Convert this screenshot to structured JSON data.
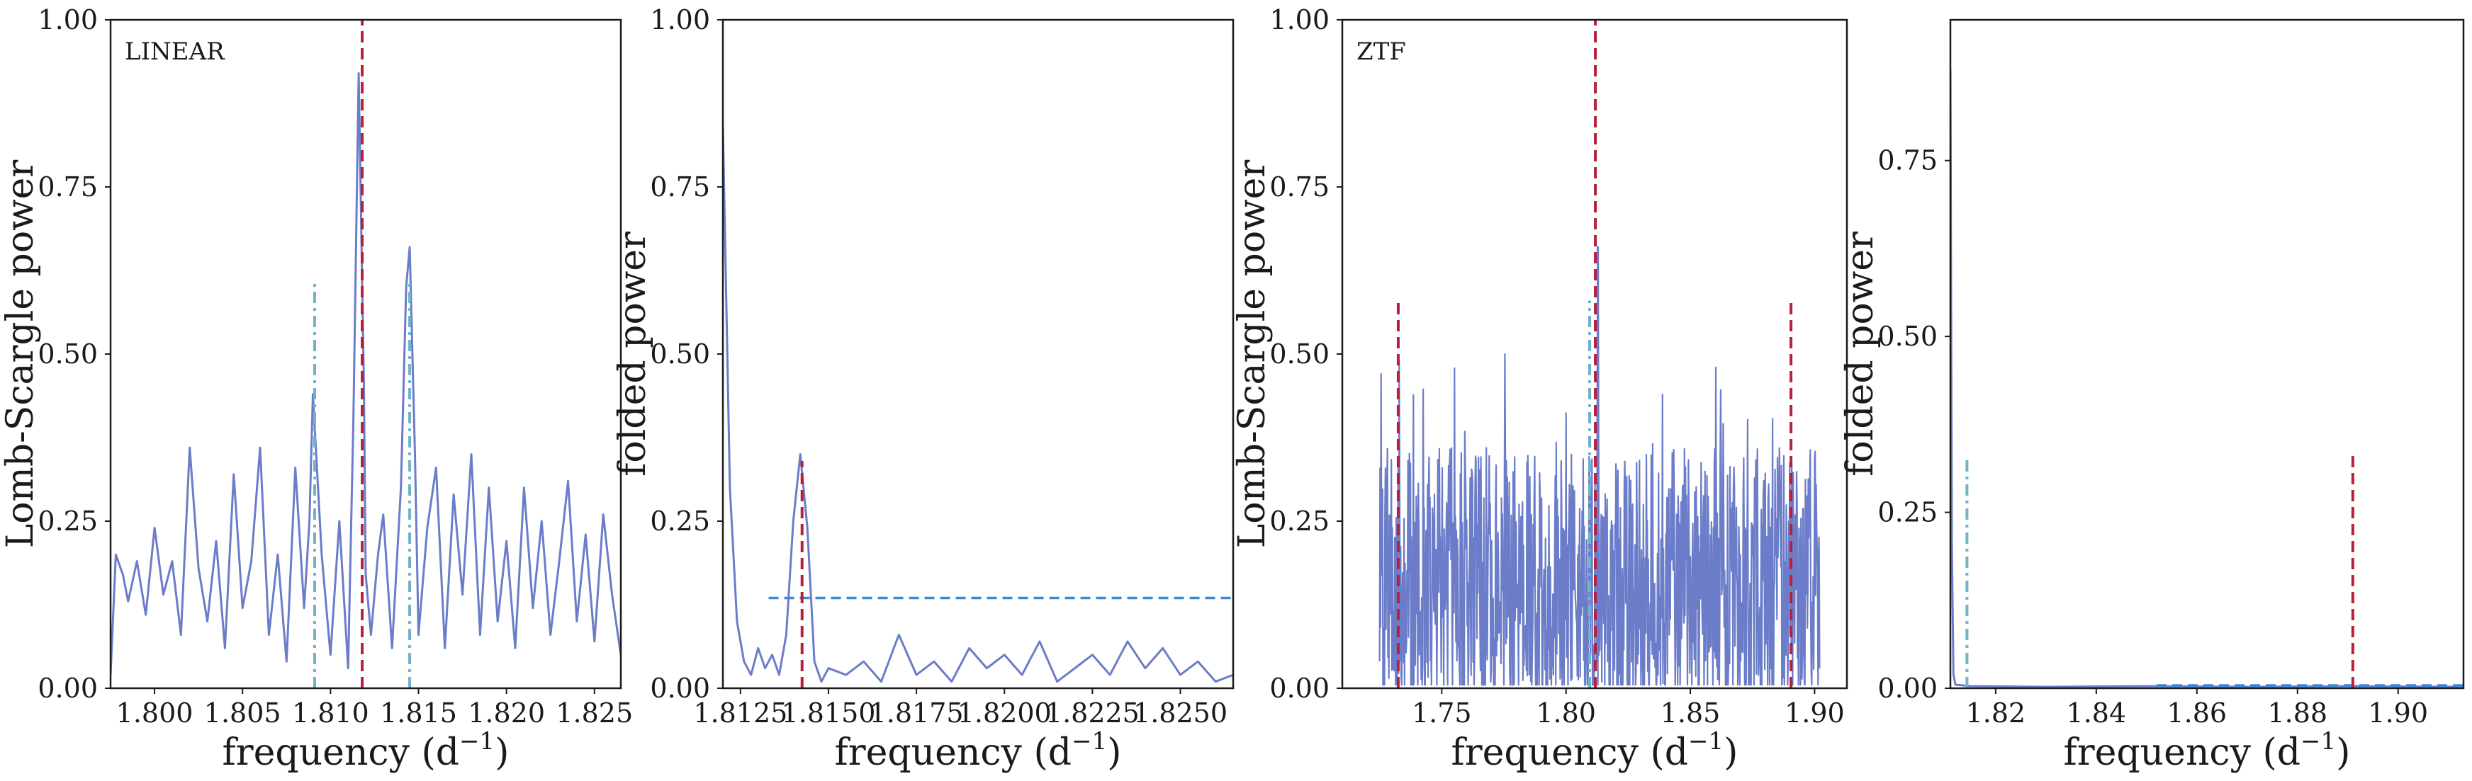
{
  "chart_data": [
    {
      "type": "line",
      "annotation": "LINEAR",
      "xlabel": "frequency (d",
      "xlabel_exp": "−1",
      "xlabel_close": ")",
      "ylabel": "Lomb-Scargle power",
      "xlim": [
        1.7975,
        1.8265
      ],
      "ylim": [
        0,
        1.0
      ],
      "xticks": [
        1.8,
        1.805,
        1.81,
        1.815,
        1.82,
        1.825
      ],
      "xtick_labels": [
        "1.800",
        "1.805",
        "1.810",
        "1.815",
        "1.820",
        "1.825"
      ],
      "yticks": [
        0,
        0.25,
        0.5,
        0.75,
        1.0
      ],
      "ytick_labels": [
        "0.00",
        "0.25",
        "0.50",
        "0.75",
        "1.00"
      ],
      "series": [
        {
          "color": "#6b7cc9",
          "x": [
            1.7975,
            1.7978,
            1.7982,
            1.7985,
            1.799,
            1.7995,
            1.8,
            1.8005,
            1.801,
            1.8015,
            1.802,
            1.8025,
            1.803,
            1.8035,
            1.804,
            1.8045,
            1.805,
            1.8055,
            1.806,
            1.8065,
            1.807,
            1.8075,
            1.808,
            1.8085,
            1.8088,
            1.809,
            1.8095,
            1.81,
            1.8105,
            1.811,
            1.8113,
            1.8116,
            1.8119,
            1.812,
            1.8123,
            1.8127,
            1.813,
            1.8135,
            1.814,
            1.8143,
            1.8145,
            1.8148,
            1.815,
            1.8155,
            1.816,
            1.8165,
            1.817,
            1.8175,
            1.818,
            1.8185,
            1.819,
            1.8195,
            1.82,
            1.8205,
            1.821,
            1.8215,
            1.822,
            1.8225,
            1.823,
            1.8235,
            1.824,
            1.8245,
            1.825,
            1.8255,
            1.826,
            1.8265
          ],
          "y": [
            0.02,
            0.2,
            0.17,
            0.13,
            0.19,
            0.11,
            0.24,
            0.14,
            0.19,
            0.08,
            0.36,
            0.18,
            0.1,
            0.22,
            0.06,
            0.32,
            0.12,
            0.19,
            0.36,
            0.08,
            0.2,
            0.04,
            0.33,
            0.12,
            0.25,
            0.44,
            0.2,
            0.05,
            0.25,
            0.03,
            0.4,
            0.92,
            0.45,
            0.17,
            0.08,
            0.2,
            0.26,
            0.06,
            0.3,
            0.6,
            0.66,
            0.35,
            0.08,
            0.24,
            0.33,
            0.06,
            0.29,
            0.14,
            0.35,
            0.08,
            0.3,
            0.1,
            0.22,
            0.06,
            0.3,
            0.12,
            0.25,
            0.08,
            0.19,
            0.31,
            0.1,
            0.23,
            0.07,
            0.26,
            0.14,
            0.05
          ]
        }
      ],
      "vlines": [
        {
          "x": 1.8118,
          "ymin": 0,
          "ymax": 1.0,
          "color": "#b8203a",
          "style": "dashed"
        },
        {
          "x": 1.8091,
          "ymin": 0,
          "ymax": 0.61,
          "color": "#6db3c9",
          "style": "dashdot"
        },
        {
          "x": 1.8145,
          "ymin": 0,
          "ymax": 0.61,
          "color": "#6db3c9",
          "style": "dashdot"
        }
      ],
      "hlines": []
    },
    {
      "type": "line",
      "annotation": "",
      "xlabel": "frequency (d",
      "xlabel_exp": "−1",
      "xlabel_close": ")",
      "ylabel": "folded power",
      "xlim": [
        1.812,
        1.8265
      ],
      "ylim": [
        0,
        1.0
      ],
      "xticks": [
        1.8125,
        1.815,
        1.8175,
        1.82,
        1.8225,
        1.825
      ],
      "xtick_labels": [
        "1.8125",
        "1.8150",
        "1.8175",
        "1.8200",
        "1.8225",
        "1.8250"
      ],
      "yticks": [
        0,
        0.25,
        0.5,
        0.75,
        1.0
      ],
      "ytick_labels": [
        "0.00",
        "0.25",
        "0.50",
        "0.75",
        "1.00"
      ],
      "series": [
        {
          "color": "#6b7cc9",
          "x": [
            1.812,
            1.8122,
            1.8124,
            1.8126,
            1.8128,
            1.813,
            1.8132,
            1.8134,
            1.8136,
            1.8138,
            1.814,
            1.8142,
            1.8144,
            1.8146,
            1.8148,
            1.815,
            1.8155,
            1.816,
            1.8165,
            1.817,
            1.8175,
            1.818,
            1.8185,
            1.819,
            1.8195,
            1.82,
            1.8205,
            1.821,
            1.8215,
            1.822,
            1.8225,
            1.823,
            1.8235,
            1.824,
            1.8245,
            1.825,
            1.8255,
            1.826,
            1.8265
          ],
          "y": [
            0.84,
            0.3,
            0.1,
            0.04,
            0.02,
            0.06,
            0.03,
            0.05,
            0.02,
            0.08,
            0.25,
            0.35,
            0.24,
            0.04,
            0.01,
            0.03,
            0.02,
            0.04,
            0.01,
            0.08,
            0.02,
            0.04,
            0.01,
            0.06,
            0.03,
            0.05,
            0.02,
            0.07,
            0.01,
            0.03,
            0.05,
            0.02,
            0.07,
            0.03,
            0.06,
            0.02,
            0.04,
            0.01,
            0.02
          ]
        }
      ],
      "vlines": [
        {
          "x": 1.81425,
          "ymin": 0,
          "ymax": 0.34,
          "color": "#b8203a",
          "style": "dashed"
        }
      ],
      "hlines": [
        {
          "y": 0.135,
          "xmin": 1.8133,
          "xmax": 1.8265,
          "color": "#3b88d4",
          "style": "dashed"
        }
      ]
    },
    {
      "type": "line",
      "annotation": "ZTF",
      "xlabel": "frequency (d",
      "xlabel_exp": "−1",
      "xlabel_close": ")",
      "ylabel": "Lomb-Scargle power",
      "xlim": [
        1.71,
        1.913
      ],
      "ylim": [
        0,
        1.0
      ],
      "xticks": [
        1.75,
        1.8,
        1.85,
        1.9
      ],
      "xtick_labels": [
        "1.75",
        "1.80",
        "1.85",
        "1.90"
      ],
      "yticks": [
        0,
        0.25,
        0.5,
        0.75,
        1.0
      ],
      "ytick_labels": [
        "0.00",
        "0.25",
        "0.50",
        "0.75",
        "1.00"
      ],
      "noise": {
        "xmin": 1.725,
        "xmax": 1.902,
        "n": 900,
        "base": 0.15,
        "amp": 0.3,
        "seed": 7
      },
      "series": [
        {
          "color": "#6b7cc9",
          "x": [
            1.8125,
            1.8128,
            1.8131,
            1.8134
          ],
          "y": [
            0.1,
            0.66,
            0.2,
            0.08
          ]
        }
      ],
      "vlines": [
        {
          "x": 1.8118,
          "ymin": 0,
          "ymax": 1.0,
          "color": "#b8203a",
          "style": "dashed"
        },
        {
          "x": 1.7325,
          "ymin": 0,
          "ymax": 0.58,
          "color": "#b8203a",
          "style": "dashed"
        },
        {
          "x": 1.8905,
          "ymin": 0,
          "ymax": 0.58,
          "color": "#b8203a",
          "style": "dashed"
        },
        {
          "x": 1.8095,
          "ymin": 0,
          "ymax": 0.58,
          "color": "#6db3c9",
          "style": "dashdot"
        }
      ],
      "hlines": []
    },
    {
      "type": "line",
      "annotation": "",
      "xlabel": "frequency (d",
      "xlabel_exp": "−1",
      "xlabel_close": ")",
      "ylabel": "folded power",
      "xlim": [
        1.811,
        1.913
      ],
      "ylim": [
        0,
        0.95
      ],
      "xticks": [
        1.82,
        1.84,
        1.86,
        1.88,
        1.9
      ],
      "xtick_labels": [
        "1.82",
        "1.84",
        "1.86",
        "1.88",
        "1.90"
      ],
      "yticks": [
        0,
        0.25,
        0.5,
        0.75
      ],
      "ytick_labels": [
        "0.00",
        "0.25",
        "0.50",
        "0.75"
      ],
      "series": [
        {
          "color": "#6b7cc9",
          "x": [
            1.811,
            1.8113,
            1.8116,
            1.812,
            1.815,
            1.83,
            1.85,
            1.87,
            1.89,
            1.913
          ],
          "y": [
            0.88,
            0.2,
            0.02,
            0.005,
            0.003,
            0.002,
            0.003,
            0.002,
            0.003,
            0.002
          ]
        }
      ],
      "vlines": [
        {
          "x": 1.8143,
          "ymin": 0,
          "ymax": 0.33,
          "color": "#6db3c9",
          "style": "dashdot"
        },
        {
          "x": 1.891,
          "ymin": 0,
          "ymax": 0.33,
          "color": "#b8203a",
          "style": "dashed"
        }
      ],
      "hlines": [
        {
          "y": 0.004,
          "xmin": 1.852,
          "xmax": 1.913,
          "color": "#3b88d4",
          "style": "dashed"
        }
      ]
    }
  ]
}
